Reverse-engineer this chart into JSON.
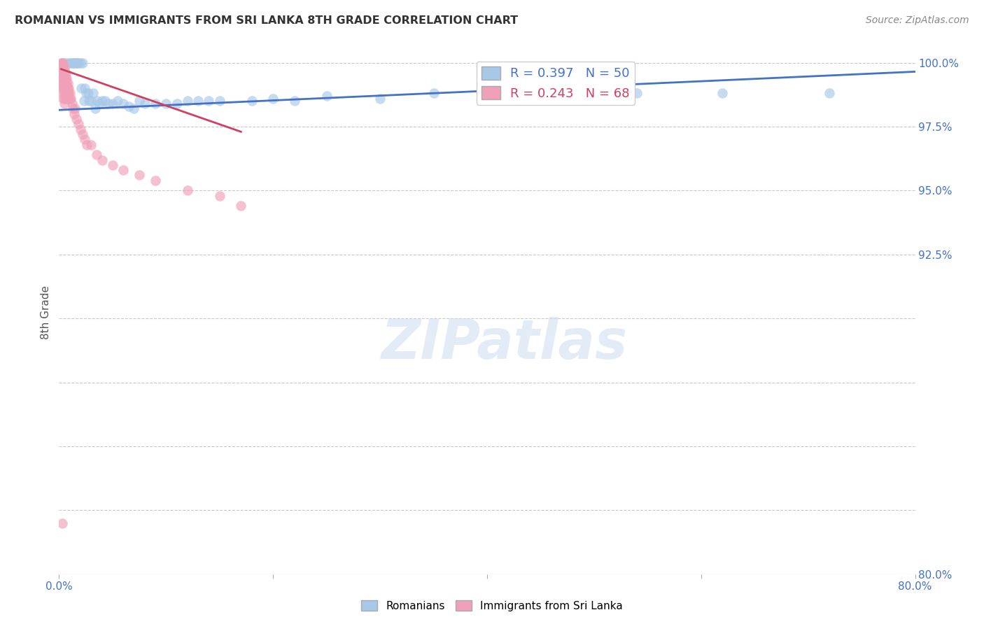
{
  "title": "ROMANIAN VS IMMIGRANTS FROM SRI LANKA 8TH GRADE CORRELATION CHART",
  "source": "Source: ZipAtlas.com",
  "ylabel": "8th Grade",
  "watermark": "ZIPatlas",
  "xlim": [
    0.0,
    0.8
  ],
  "ylim": [
    0.8,
    1.005
  ],
  "xticks": [
    0.0,
    0.2,
    0.4,
    0.6,
    0.8
  ],
  "xtick_labels": [
    "0.0%",
    "",
    "",
    "",
    "80.0%"
  ],
  "ytick_vals": [
    0.8,
    0.825,
    0.85,
    0.875,
    0.9,
    0.925,
    0.95,
    0.975,
    1.0
  ],
  "ytick_labels": [
    "80.0%",
    "",
    "",
    "",
    "",
    "92.5%",
    "95.0%",
    "97.5%",
    "100.0%"
  ],
  "blue_color": "#a8c8e8",
  "pink_color": "#f0a0b8",
  "trendline_blue_color": "#4472c4",
  "trendline_pink_color": "#d04060",
  "blue_points_x": [
    0.005,
    0.008,
    0.01,
    0.012,
    0.013,
    0.014,
    0.015,
    0.016,
    0.017,
    0.018,
    0.02,
    0.021,
    0.022,
    0.023,
    0.024,
    0.025,
    0.027,
    0.028,
    0.03,
    0.032,
    0.034,
    0.036,
    0.038,
    0.04,
    0.043,
    0.046,
    0.05,
    0.055,
    0.06,
    0.065,
    0.07,
    0.075,
    0.08,
    0.09,
    0.1,
    0.11,
    0.12,
    0.13,
    0.14,
    0.15,
    0.18,
    0.2,
    0.22,
    0.25,
    0.3,
    0.35,
    0.4,
    0.54,
    0.62,
    0.72
  ],
  "blue_points_y": [
    1.0,
    1.0,
    1.0,
    1.0,
    1.0,
    1.0,
    1.0,
    1.0,
    1.0,
    1.0,
    1.0,
    0.99,
    1.0,
    0.985,
    0.99,
    0.988,
    0.988,
    0.985,
    0.985,
    0.988,
    0.982,
    0.985,
    0.984,
    0.985,
    0.985,
    0.984,
    0.984,
    0.985,
    0.984,
    0.983,
    0.982,
    0.985,
    0.984,
    0.984,
    0.984,
    0.984,
    0.985,
    0.985,
    0.985,
    0.985,
    0.985,
    0.986,
    0.985,
    0.987,
    0.986,
    0.988,
    0.988,
    0.988,
    0.988,
    0.988
  ],
  "pink_points_x": [
    0.002,
    0.002,
    0.002,
    0.002,
    0.003,
    0.003,
    0.003,
    0.003,
    0.003,
    0.003,
    0.004,
    0.004,
    0.004,
    0.004,
    0.004,
    0.004,
    0.004,
    0.004,
    0.005,
    0.005,
    0.005,
    0.005,
    0.005,
    0.005,
    0.005,
    0.005,
    0.006,
    0.006,
    0.006,
    0.006,
    0.006,
    0.006,
    0.007,
    0.007,
    0.007,
    0.007,
    0.007,
    0.008,
    0.008,
    0.008,
    0.008,
    0.009,
    0.009,
    0.009,
    0.01,
    0.01,
    0.011,
    0.012,
    0.013,
    0.014,
    0.015,
    0.016,
    0.018,
    0.02,
    0.022,
    0.024,
    0.026,
    0.03,
    0.035,
    0.04,
    0.05,
    0.06,
    0.075,
    0.09,
    0.12,
    0.15,
    0.17,
    0.003
  ],
  "pink_points_y": [
    1.0,
    0.998,
    0.998,
    0.996,
    1.0,
    0.998,
    0.996,
    0.994,
    0.992,
    0.99,
    1.0,
    0.998,
    0.996,
    0.994,
    0.992,
    0.99,
    0.988,
    0.986,
    0.998,
    0.996,
    0.994,
    0.992,
    0.99,
    0.988,
    0.986,
    0.984,
    0.996,
    0.994,
    0.992,
    0.99,
    0.988,
    0.986,
    0.994,
    0.992,
    0.99,
    0.988,
    0.986,
    0.992,
    0.99,
    0.988,
    0.986,
    0.99,
    0.988,
    0.986,
    0.988,
    0.986,
    0.986,
    0.984,
    0.982,
    0.98,
    0.982,
    0.978,
    0.976,
    0.974,
    0.972,
    0.97,
    0.968,
    0.968,
    0.964,
    0.962,
    0.96,
    0.958,
    0.956,
    0.954,
    0.95,
    0.948,
    0.944,
    0.82
  ],
  "blue_trend_x0": 0.0,
  "blue_trend_x1": 0.8,
  "blue_trend_y0": 0.9815,
  "blue_trend_y1": 0.9965,
  "pink_trend_x0": 0.002,
  "pink_trend_x1": 0.17,
  "pink_trend_y0": 0.9975,
  "pink_trend_y1": 0.973
}
